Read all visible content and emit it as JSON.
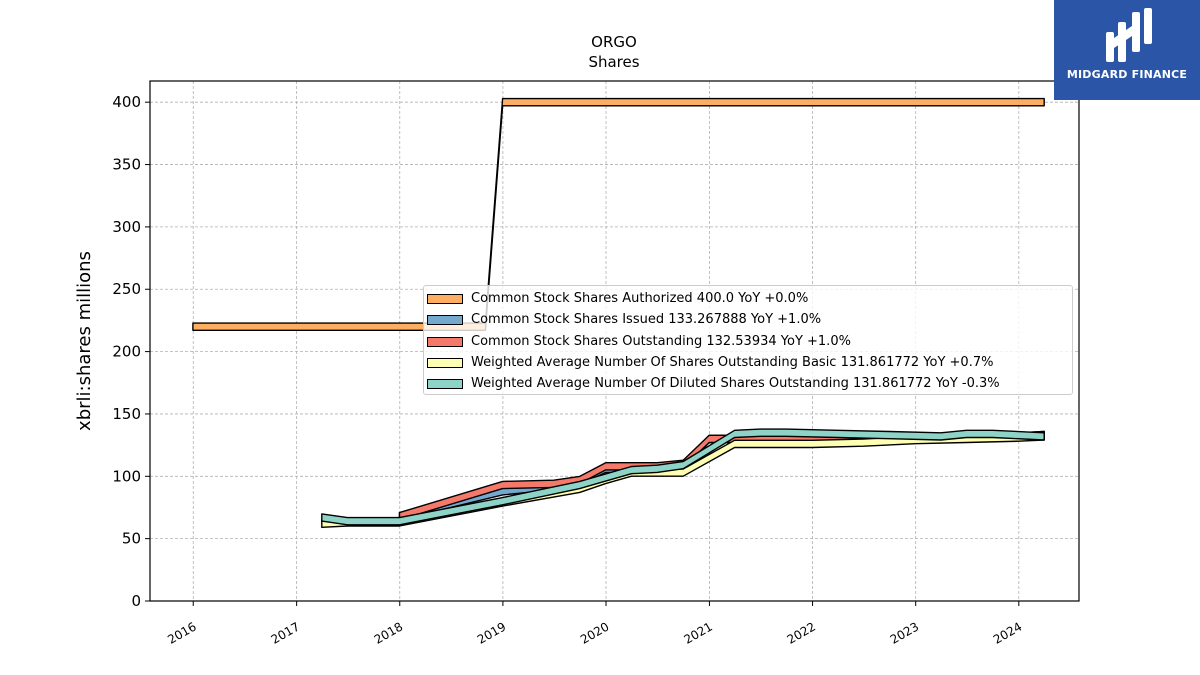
{
  "chart_data": {
    "type": "area",
    "title": "ORGO",
    "subtitle": "Shares",
    "xlabel": "",
    "ylabel": "xbrli:shares millions",
    "xlim": [
      "2015-08-01",
      "2024-08-01"
    ],
    "ylim": [
      0,
      417
    ],
    "x_ticks": [
      "2016",
      "2017",
      "2018",
      "2019",
      "2020",
      "2021",
      "2022",
      "2023",
      "2024"
    ],
    "y_ticks": [
      0,
      50,
      100,
      150,
      200,
      250,
      300,
      350,
      400
    ],
    "grid": true,
    "legend_position": "center-right",
    "series": [
      {
        "name": "Common Stock Shares Authorized",
        "legend_label": "Common Stock Shares Authorized  400.0 YoY +0.0%",
        "color": "#fdae61",
        "points": [
          [
            "2015-12-31",
            220
          ],
          [
            "2018-10-31",
            220
          ],
          [
            "2018-12-31",
            400
          ],
          [
            "2024-03-31",
            400
          ]
        ]
      },
      {
        "name": "Common Stock Shares Issued",
        "legend_label": "Common Stock Shares Issued  133.267888 YoY +1.0%",
        "color": "#74a9cf",
        "points": [
          [
            "2017-12-31",
            68
          ],
          [
            "2018-12-31",
            88
          ],
          [
            "2019-06-30",
            92
          ],
          [
            "2019-09-30",
            96
          ],
          [
            "2019-12-31",
            106
          ],
          [
            "2020-06-30",
            106
          ],
          [
            "2020-09-30",
            108
          ],
          [
            "2020-12-31",
            130
          ],
          [
            "2021-03-31",
            130
          ],
          [
            "2021-12-31",
            129
          ],
          [
            "2022-06-30",
            130
          ],
          [
            "2022-12-31",
            131
          ],
          [
            "2023-06-30",
            131
          ],
          [
            "2023-12-31",
            132
          ],
          [
            "2024-03-31",
            133
          ]
        ]
      },
      {
        "name": "Common Stock Shares Outstanding",
        "legend_label": "Common Stock Shares Outstanding  132.53934 YoY +1.0%",
        "color": "#f4796b",
        "points": [
          [
            "2017-12-31",
            68
          ],
          [
            "2018-12-31",
            93
          ],
          [
            "2019-06-30",
            94
          ],
          [
            "2019-09-30",
            97
          ],
          [
            "2019-12-31",
            108
          ],
          [
            "2020-06-30",
            108
          ],
          [
            "2020-09-30",
            110
          ],
          [
            "2020-12-31",
            130
          ],
          [
            "2021-03-31",
            130
          ],
          [
            "2021-12-31",
            129
          ],
          [
            "2022-06-30",
            130
          ],
          [
            "2022-12-31",
            131
          ],
          [
            "2023-06-30",
            131
          ],
          [
            "2023-12-31",
            132
          ],
          [
            "2024-03-31",
            133
          ]
        ]
      },
      {
        "name": "Weighted Average Number Of Shares Outstanding Basic",
        "legend_label": "Weighted Average Number Of Shares Outstanding Basic  131.861772 YoY +0.7%",
        "color": "#ffffb3",
        "points": [
          [
            "2017-03-31",
            62
          ],
          [
            "2017-06-30",
            63
          ],
          [
            "2017-12-31",
            63
          ],
          [
            "2018-12-31",
            79
          ],
          [
            "2019-09-30",
            90
          ],
          [
            "2019-12-31",
            97
          ],
          [
            "2020-03-31",
            103
          ],
          [
            "2020-06-30",
            103
          ],
          [
            "2020-09-30",
            103
          ],
          [
            "2021-03-31",
            126
          ],
          [
            "2021-06-30",
            126
          ],
          [
            "2021-12-31",
            126
          ],
          [
            "2022-06-30",
            127
          ],
          [
            "2022-12-31",
            129
          ],
          [
            "2023-06-30",
            130
          ],
          [
            "2023-12-31",
            131
          ],
          [
            "2024-03-31",
            132
          ]
        ]
      },
      {
        "name": "Weighted Average Number Of Diluted Shares Outstanding",
        "legend_label": "Weighted Average Number Of Diluted Shares Outstanding  131.861772 YoY -0.3%",
        "color": "#8dd3c7",
        "points": [
          [
            "2017-03-31",
            67
          ],
          [
            "2017-06-30",
            64
          ],
          [
            "2017-12-31",
            64
          ],
          [
            "2018-12-31",
            80
          ],
          [
            "2019-09-30",
            93
          ],
          [
            "2019-12-31",
            99
          ],
          [
            "2020-03-31",
            105
          ],
          [
            "2020-06-30",
            106
          ],
          [
            "2020-09-30",
            109
          ],
          [
            "2021-03-31",
            134
          ],
          [
            "2021-06-30",
            135
          ],
          [
            "2021-09-30",
            135
          ],
          [
            "2022-03-31",
            134
          ],
          [
            "2022-09-30",
            133
          ],
          [
            "2023-03-31",
            132
          ],
          [
            "2023-06-30",
            134
          ],
          [
            "2023-09-30",
            134
          ],
          [
            "2024-03-31",
            132
          ]
        ]
      }
    ]
  },
  "logo": {
    "text": "MIDGARD FINANCE",
    "background": "#2b56a8"
  }
}
